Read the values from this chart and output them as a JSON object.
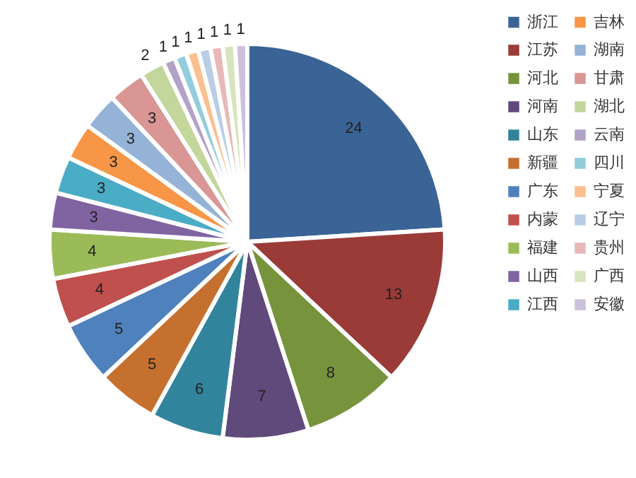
{
  "chart_data": {
    "type": "pie",
    "categories": [
      "浙江",
      "江苏",
      "河北",
      "河南",
      "山东",
      "新疆",
      "广东",
      "内蒙",
      "福建",
      "山西",
      "江西",
      "吉林",
      "湖南",
      "甘肃",
      "湖北",
      "云南",
      "四川",
      "宁夏",
      "辽宁",
      "贵州",
      "广西",
      "安徽"
    ],
    "values": [
      24,
      13,
      8,
      7,
      6,
      5,
      5,
      4,
      4,
      3,
      3,
      3,
      3,
      3,
      2,
      1,
      1,
      1,
      1,
      1,
      1,
      1
    ],
    "colors": [
      "#3b6496",
      "#9a3b38",
      "#77933c",
      "#604a7b",
      "#31849b",
      "#c5702e",
      "#4f81bd",
      "#c0504d",
      "#9bbb59",
      "#8064a2",
      "#4bacc6",
      "#f79646",
      "#95b3d7",
      "#d99694",
      "#c3d69b",
      "#b3a2c7",
      "#93cddd",
      "#fac090",
      "#b9cde5",
      "#e6b9b8",
      "#d7e4bd",
      "#ccc1da"
    ],
    "data_labels": true,
    "legend": "right"
  }
}
